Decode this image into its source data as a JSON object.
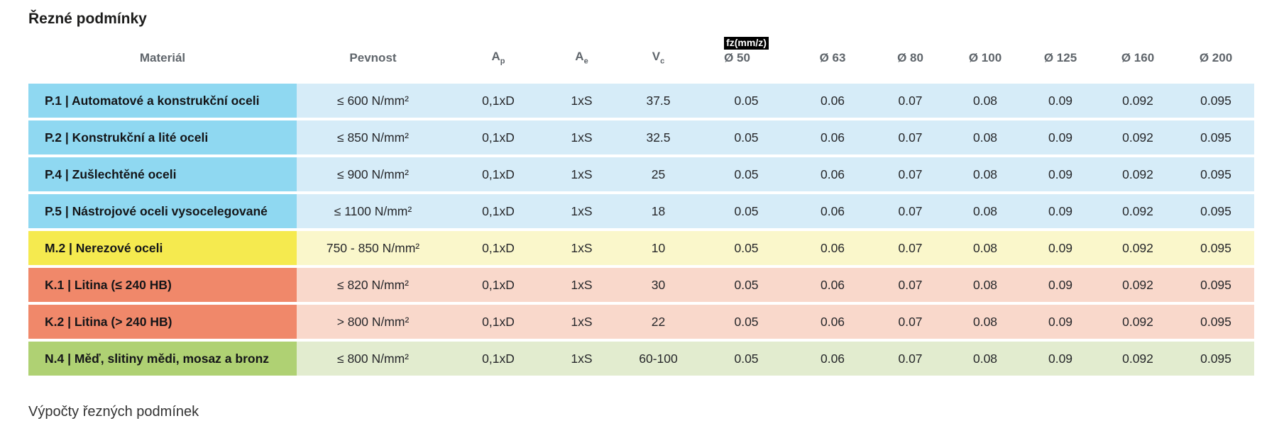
{
  "page": {
    "title": "Řezné podmínky",
    "footer_heading": "Výpočty řezných podmínek"
  },
  "colors": {
    "badge_bg": "#000000",
    "badge_text": "#ffffff",
    "header_text": "#5f656b",
    "group_steel_dark": "#8FD8F1",
    "group_steel_light": "#D6ECF8",
    "group_stainless_dark": "#F5EA4F",
    "group_stainless_light": "#FAF7CB",
    "group_castiron_dark": "#F0886A",
    "group_castiron_light": "#F9D8CB",
    "group_copper_dark": "#AFD173",
    "group_copper_light": "#E2ECCF"
  },
  "table": {
    "headers": {
      "material": "Materiál",
      "strength": "Pevnost",
      "ap": {
        "base": "A",
        "sub": "p"
      },
      "ae": {
        "base": "A",
        "sub": "e"
      },
      "vc": {
        "base": "V",
        "sub": "c"
      },
      "fz_badge": "fz(mm/z)",
      "diameters": [
        "Ø 50",
        "Ø 63",
        "Ø 80",
        "Ø 100",
        "Ø 125",
        "Ø 160",
        "Ø 200"
      ]
    },
    "rows": [
      {
        "material": "P.1 | Automatové a konstrukční oceli",
        "strength": "≤ 600 N/mm²",
        "ap": "0,1xD",
        "ae": "1xS",
        "vc": "37.5",
        "fz": [
          "0.05",
          "0.06",
          "0.07",
          "0.08",
          "0.09",
          "0.092",
          "0.095"
        ],
        "colors": {
          "dark": "#8FD8F1",
          "light": "#D6ECF8"
        }
      },
      {
        "material": "P.2 | Konstrukční a lité oceli",
        "strength": "≤ 850 N/mm²",
        "ap": "0,1xD",
        "ae": "1xS",
        "vc": "32.5",
        "fz": [
          "0.05",
          "0.06",
          "0.07",
          "0.08",
          "0.09",
          "0.092",
          "0.095"
        ],
        "colors": {
          "dark": "#8FD8F1",
          "light": "#D6ECF8"
        }
      },
      {
        "material": "P.4 | Zušlechtěné oceli",
        "strength": "≤ 900 N/mm²",
        "ap": "0,1xD",
        "ae": "1xS",
        "vc": "25",
        "fz": [
          "0.05",
          "0.06",
          "0.07",
          "0.08",
          "0.09",
          "0.092",
          "0.095"
        ],
        "colors": {
          "dark": "#8FD8F1",
          "light": "#D6ECF8"
        }
      },
      {
        "material": "P.5 | Nástrojové oceli vysocelegované",
        "strength": "≤ 1100 N/mm²",
        "ap": "0,1xD",
        "ae": "1xS",
        "vc": "18",
        "fz": [
          "0.05",
          "0.06",
          "0.07",
          "0.08",
          "0.09",
          "0.092",
          "0.095"
        ],
        "colors": {
          "dark": "#8FD8F1",
          "light": "#D6ECF8"
        }
      },
      {
        "material": "M.2 | Nerezové oceli",
        "strength": "750 - 850 N/mm²",
        "ap": "0,1xD",
        "ae": "1xS",
        "vc": "10",
        "fz": [
          "0.05",
          "0.06",
          "0.07",
          "0.08",
          "0.09",
          "0.092",
          "0.095"
        ],
        "colors": {
          "dark": "#F5EA4F",
          "light": "#FAF7CB"
        }
      },
      {
        "material": "K.1 | Litina (≤ 240 HB)",
        "strength": "≤ 820 N/mm²",
        "ap": "0,1xD",
        "ae": "1xS",
        "vc": "30",
        "fz": [
          "0.05",
          "0.06",
          "0.07",
          "0.08",
          "0.09",
          "0.092",
          "0.095"
        ],
        "colors": {
          "dark": "#F0886A",
          "light": "#F9D8CB"
        }
      },
      {
        "material": "K.2 | Litina (> 240 HB)",
        "strength": "> 800 N/mm²",
        "ap": "0,1xD",
        "ae": "1xS",
        "vc": "22",
        "fz": [
          "0.05",
          "0.06",
          "0.07",
          "0.08",
          "0.09",
          "0.092",
          "0.095"
        ],
        "colors": {
          "dark": "#F0886A",
          "light": "#F9D8CB"
        }
      },
      {
        "material": "N.4 | Měď, slitiny mědi, mosaz a bronz",
        "strength": "≤ 800 N/mm²",
        "ap": "0,1xD",
        "ae": "1xS",
        "vc": "60-100",
        "fz": [
          "0.05",
          "0.06",
          "0.07",
          "0.08",
          "0.09",
          "0.092",
          "0.095"
        ],
        "colors": {
          "dark": "#AFD173",
          "light": "#E2ECCF"
        }
      }
    ]
  }
}
